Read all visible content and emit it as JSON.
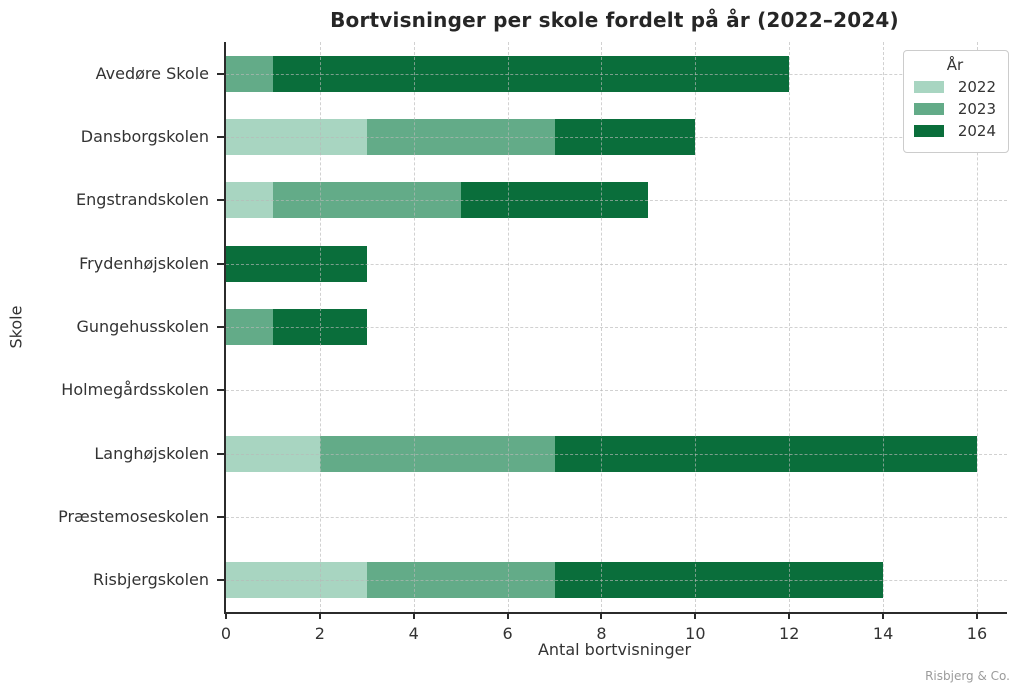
{
  "title": "Bortvisninger per skole fordelt på år (2022–2024)",
  "xlabel": "Antal bortvisninger",
  "ylabel": "Skole",
  "watermark": "Risbjerg & Co.",
  "legend": {
    "title": "År"
  },
  "colors": {
    "year_2022": "#a8d5c1",
    "year_2023": "#63ab88",
    "year_2024": "#0a6e3b",
    "grid": "#b9b9b9",
    "spine": "#2b2b2b",
    "text": "#333333",
    "watermark": "#9b9b9b"
  },
  "chart_data": {
    "type": "bar",
    "stacked": true,
    "orientation": "horizontal",
    "title": "Bortvisninger per skole fordelt på år (2022–2024)",
    "xlabel": "Antal bortvisninger",
    "ylabel": "Skole",
    "categories": [
      "Avedøre Skole",
      "Dansborgskolen",
      "Engstrandskolen",
      "Frydenhøjskolen",
      "Gungehusskolen",
      "Holmegårdsskolen",
      "Langhøjskolen",
      "Præstemoseskolen",
      "Risbjergskolen"
    ],
    "series": [
      {
        "name": "2022",
        "color": "#a8d5c1",
        "values": [
          0,
          3,
          1,
          0,
          0,
          0,
          2,
          0,
          3
        ]
      },
      {
        "name": "2023",
        "color": "#63ab88",
        "values": [
          1,
          4,
          4,
          0,
          1,
          0,
          5,
          0,
          4
        ]
      },
      {
        "name": "2024",
        "color": "#0a6e3b",
        "values": [
          11,
          3,
          4,
          3,
          2,
          0,
          9,
          0,
          7
        ]
      }
    ],
    "totals": [
      12,
      10,
      9,
      3,
      3,
      0,
      16,
      0,
      14
    ],
    "xlim": [
      0,
      16.64
    ],
    "xticks": [
      0,
      2,
      4,
      6,
      8,
      10,
      12,
      14,
      16
    ],
    "grid": true,
    "grid_style": "dashed",
    "legend_position": "upper right",
    "legend_title": "År"
  }
}
